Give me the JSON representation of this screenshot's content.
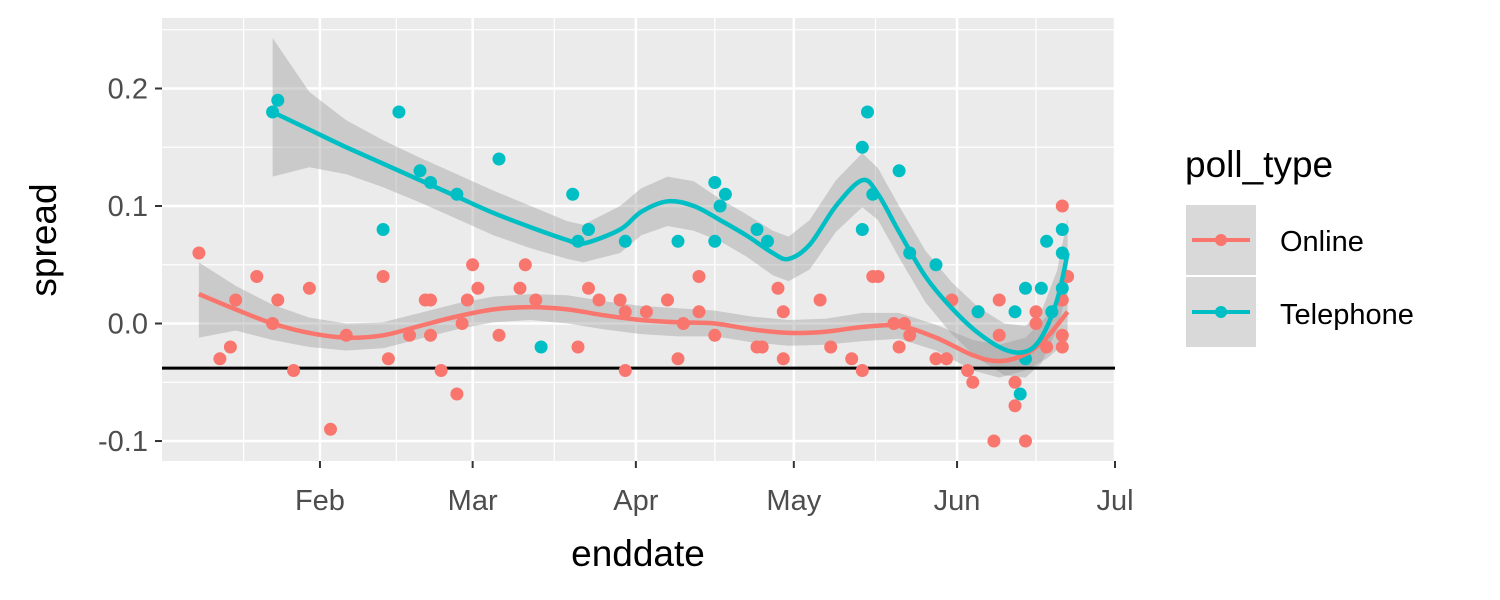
{
  "chart_data": {
    "type": "scatter",
    "xlabel": "enddate",
    "ylabel": "spread",
    "xlim": [
      "2016-01-02",
      "2016-07-01"
    ],
    "ylim": [
      -0.117,
      0.26
    ],
    "x_ticks": [
      {
        "date": "2016-02-01",
        "label": "Feb"
      },
      {
        "date": "2016-03-01",
        "label": "Mar"
      },
      {
        "date": "2016-04-01",
        "label": "Apr"
      },
      {
        "date": "2016-05-01",
        "label": "May"
      },
      {
        "date": "2016-06-01",
        "label": "Jun"
      },
      {
        "date": "2016-07-01",
        "label": "Jul"
      }
    ],
    "y_ticks": [
      {
        "value": -0.1,
        "label": "-0.1"
      },
      {
        "value": 0.0,
        "label": "0.0"
      },
      {
        "value": 0.1,
        "label": "0.1"
      },
      {
        "value": 0.2,
        "label": "0.2"
      }
    ],
    "reference_line": {
      "y": -0.038,
      "color": "#000000"
    },
    "grid": true,
    "legend": {
      "title": "poll_type",
      "position": "right"
    },
    "series": [
      {
        "name": "Online",
        "color": "#F8766D",
        "points": [
          [
            "2016-01-09",
            0.06
          ],
          [
            "2016-01-13",
            -0.03
          ],
          [
            "2016-01-15",
            -0.02
          ],
          [
            "2016-01-16",
            0.02
          ],
          [
            "2016-01-20",
            0.04
          ],
          [
            "2016-01-23",
            0.0
          ],
          [
            "2016-01-24",
            0.02
          ],
          [
            "2016-01-27",
            -0.04
          ],
          [
            "2016-01-30",
            0.03
          ],
          [
            "2016-02-03",
            -0.09
          ],
          [
            "2016-02-06",
            -0.01
          ],
          [
            "2016-02-13",
            0.04
          ],
          [
            "2016-02-14",
            -0.03
          ],
          [
            "2016-02-18",
            -0.01
          ],
          [
            "2016-02-21",
            0.02
          ],
          [
            "2016-02-22",
            -0.01
          ],
          [
            "2016-02-22",
            0.02
          ],
          [
            "2016-02-24",
            -0.04
          ],
          [
            "2016-02-27",
            -0.06
          ],
          [
            "2016-02-28",
            0.0
          ],
          [
            "2016-02-29",
            0.02
          ],
          [
            "2016-03-01",
            0.05
          ],
          [
            "2016-03-02",
            0.03
          ],
          [
            "2016-03-06",
            -0.01
          ],
          [
            "2016-03-10",
            0.03
          ],
          [
            "2016-03-11",
            0.05
          ],
          [
            "2016-03-13",
            0.02
          ],
          [
            "2016-03-21",
            -0.02
          ],
          [
            "2016-03-23",
            0.03
          ],
          [
            "2016-03-25",
            0.02
          ],
          [
            "2016-03-29",
            0.02
          ],
          [
            "2016-03-30",
            0.01
          ],
          [
            "2016-03-30",
            -0.04
          ],
          [
            "2016-04-03",
            0.01
          ],
          [
            "2016-04-07",
            0.02
          ],
          [
            "2016-04-09",
            -0.03
          ],
          [
            "2016-04-10",
            0.0
          ],
          [
            "2016-04-13",
            0.01
          ],
          [
            "2016-04-13",
            0.04
          ],
          [
            "2016-04-16",
            -0.01
          ],
          [
            "2016-04-24",
            -0.02
          ],
          [
            "2016-04-25",
            -0.02
          ],
          [
            "2016-04-28",
            0.03
          ],
          [
            "2016-04-29",
            0.01
          ],
          [
            "2016-04-29",
            -0.03
          ],
          [
            "2016-05-06",
            0.02
          ],
          [
            "2016-05-08",
            -0.02
          ],
          [
            "2016-05-12",
            -0.03
          ],
          [
            "2016-05-14",
            -0.04
          ],
          [
            "2016-05-16",
            0.04
          ],
          [
            "2016-05-17",
            0.04
          ],
          [
            "2016-05-20",
            0.0
          ],
          [
            "2016-05-21",
            -0.02
          ],
          [
            "2016-05-22",
            0.0
          ],
          [
            "2016-05-23",
            -0.01
          ],
          [
            "2016-05-28",
            -0.03
          ],
          [
            "2016-05-30",
            -0.03
          ],
          [
            "2016-05-31",
            0.02
          ],
          [
            "2016-06-03",
            -0.04
          ],
          [
            "2016-06-04",
            -0.05
          ],
          [
            "2016-06-05",
            0.01
          ],
          [
            "2016-06-08",
            -0.1
          ],
          [
            "2016-06-09",
            0.02
          ],
          [
            "2016-06-09",
            -0.01
          ],
          [
            "2016-06-12",
            -0.05
          ],
          [
            "2016-06-12",
            -0.07
          ],
          [
            "2016-06-14",
            -0.1
          ],
          [
            "2016-06-16",
            0.01
          ],
          [
            "2016-06-16",
            0.0
          ],
          [
            "2016-06-18",
            -0.02
          ],
          [
            "2016-06-21",
            0.1
          ],
          [
            "2016-06-21",
            0.02
          ],
          [
            "2016-06-21",
            -0.01
          ],
          [
            "2016-06-21",
            -0.02
          ],
          [
            "2016-06-22",
            0.04
          ]
        ],
        "trend": [
          [
            "2016-01-09",
            0.025
          ],
          [
            "2016-01-16",
            0.012
          ],
          [
            "2016-01-23",
            0.0
          ],
          [
            "2016-01-30",
            -0.008
          ],
          [
            "2016-02-06",
            -0.012
          ],
          [
            "2016-02-13",
            -0.01
          ],
          [
            "2016-02-20",
            -0.002
          ],
          [
            "2016-02-27",
            0.006
          ],
          [
            "2016-03-05",
            0.012
          ],
          [
            "2016-03-12",
            0.014
          ],
          [
            "2016-03-19",
            0.012
          ],
          [
            "2016-03-26",
            0.007
          ],
          [
            "2016-04-02",
            0.003
          ],
          [
            "2016-04-09",
            0.001
          ],
          [
            "2016-04-16",
            0.0
          ],
          [
            "2016-04-23",
            -0.005
          ],
          [
            "2016-04-30",
            -0.008
          ],
          [
            "2016-05-07",
            -0.007
          ],
          [
            "2016-05-14",
            -0.003
          ],
          [
            "2016-05-21",
            -0.002
          ],
          [
            "2016-05-28",
            -0.012
          ],
          [
            "2016-06-04",
            -0.027
          ],
          [
            "2016-06-09",
            -0.032
          ],
          [
            "2016-06-14",
            -0.026
          ],
          [
            "2016-06-18",
            -0.012
          ],
          [
            "2016-06-22",
            0.01
          ]
        ],
        "band": [
          [
            "2016-01-09",
            -0.012,
            0.052
          ],
          [
            "2016-01-16",
            -0.006,
            0.032
          ],
          [
            "2016-01-23",
            -0.014,
            0.016
          ],
          [
            "2016-01-30",
            -0.02,
            0.005
          ],
          [
            "2016-02-06",
            -0.023,
            0.0
          ],
          [
            "2016-02-13",
            -0.021,
            0.001
          ],
          [
            "2016-02-20",
            -0.013,
            0.009
          ],
          [
            "2016-02-27",
            -0.005,
            0.017
          ],
          [
            "2016-03-05",
            0.001,
            0.023
          ],
          [
            "2016-03-12",
            0.003,
            0.025
          ],
          [
            "2016-03-19",
            0.0,
            0.024
          ],
          [
            "2016-03-26",
            -0.005,
            0.019
          ],
          [
            "2016-04-02",
            -0.009,
            0.015
          ],
          [
            "2016-04-09",
            -0.011,
            0.013
          ],
          [
            "2016-04-16",
            -0.011,
            0.011
          ],
          [
            "2016-04-23",
            -0.016,
            0.006
          ],
          [
            "2016-04-30",
            -0.019,
            0.003
          ],
          [
            "2016-05-07",
            -0.018,
            0.004
          ],
          [
            "2016-05-14",
            -0.015,
            0.009
          ],
          [
            "2016-05-21",
            -0.013,
            0.009
          ],
          [
            "2016-05-28",
            -0.023,
            -0.001
          ],
          [
            "2016-06-04",
            -0.04,
            -0.014
          ],
          [
            "2016-06-09",
            -0.046,
            -0.018
          ],
          [
            "2016-06-14",
            -0.04,
            -0.012
          ],
          [
            "2016-06-18",
            -0.03,
            0.006
          ],
          [
            "2016-06-22",
            -0.015,
            0.035
          ]
        ]
      },
      {
        "name": "Telephone",
        "color": "#00BFC4",
        "points": [
          [
            "2016-01-23",
            0.18
          ],
          [
            "2016-01-24",
            0.19
          ],
          [
            "2016-02-13",
            0.08
          ],
          [
            "2016-02-16",
            0.18
          ],
          [
            "2016-02-20",
            0.13
          ],
          [
            "2016-02-22",
            0.12
          ],
          [
            "2016-02-27",
            0.11
          ],
          [
            "2016-03-06",
            0.14
          ],
          [
            "2016-03-14",
            -0.02
          ],
          [
            "2016-03-20",
            0.11
          ],
          [
            "2016-03-21",
            0.07
          ],
          [
            "2016-03-23",
            0.08
          ],
          [
            "2016-03-30",
            0.07
          ],
          [
            "2016-04-09",
            0.07
          ],
          [
            "2016-04-16",
            0.12
          ],
          [
            "2016-04-16",
            0.07
          ],
          [
            "2016-04-17",
            0.1
          ],
          [
            "2016-04-18",
            0.11
          ],
          [
            "2016-04-24",
            0.08
          ],
          [
            "2016-04-26",
            0.07
          ],
          [
            "2016-05-14",
            0.15
          ],
          [
            "2016-05-14",
            0.08
          ],
          [
            "2016-05-15",
            0.18
          ],
          [
            "2016-05-16",
            0.11
          ],
          [
            "2016-05-21",
            0.13
          ],
          [
            "2016-05-23",
            0.06
          ],
          [
            "2016-05-28",
            0.05
          ],
          [
            "2016-06-05",
            0.01
          ],
          [
            "2016-06-12",
            0.01
          ],
          [
            "2016-06-13",
            -0.06
          ],
          [
            "2016-06-14",
            -0.03
          ],
          [
            "2016-06-14",
            0.03
          ],
          [
            "2016-06-17",
            0.03
          ],
          [
            "2016-06-18",
            0.07
          ],
          [
            "2016-06-19",
            0.01
          ],
          [
            "2016-06-21",
            0.08
          ],
          [
            "2016-06-21",
            0.06
          ],
          [
            "2016-06-21",
            0.03
          ]
        ],
        "trend": [
          [
            "2016-01-23",
            0.18
          ],
          [
            "2016-01-30",
            0.165
          ],
          [
            "2016-02-06",
            0.15
          ],
          [
            "2016-02-13",
            0.136
          ],
          [
            "2016-02-20",
            0.122
          ],
          [
            "2016-02-27",
            0.108
          ],
          [
            "2016-03-05",
            0.094
          ],
          [
            "2016-03-12",
            0.082
          ],
          [
            "2016-03-19",
            0.071
          ],
          [
            "2016-03-22",
            0.068
          ],
          [
            "2016-03-29",
            0.08
          ],
          [
            "2016-04-02",
            0.095
          ],
          [
            "2016-04-07",
            0.104
          ],
          [
            "2016-04-12",
            0.1
          ],
          [
            "2016-04-17",
            0.088
          ],
          [
            "2016-04-22",
            0.075
          ],
          [
            "2016-04-27",
            0.06
          ],
          [
            "2016-04-30",
            0.055
          ],
          [
            "2016-05-04",
            0.067
          ],
          [
            "2016-05-09",
            0.1
          ],
          [
            "2016-05-14",
            0.122
          ],
          [
            "2016-05-17",
            0.11
          ],
          [
            "2016-05-21",
            0.078
          ],
          [
            "2016-05-26",
            0.04
          ],
          [
            "2016-05-31",
            0.013
          ],
          [
            "2016-06-05",
            -0.008
          ],
          [
            "2016-06-10",
            -0.022
          ],
          [
            "2016-06-14",
            -0.024
          ],
          [
            "2016-06-17",
            -0.012
          ],
          [
            "2016-06-20",
            0.02
          ],
          [
            "2016-06-22",
            0.06
          ]
        ],
        "band": [
          [
            "2016-01-23",
            0.125,
            0.243
          ],
          [
            "2016-01-30",
            0.133,
            0.197
          ],
          [
            "2016-02-06",
            0.127,
            0.173
          ],
          [
            "2016-02-13",
            0.116,
            0.156
          ],
          [
            "2016-02-20",
            0.103,
            0.141
          ],
          [
            "2016-02-27",
            0.089,
            0.127
          ],
          [
            "2016-03-05",
            0.075,
            0.113
          ],
          [
            "2016-03-12",
            0.064,
            0.1
          ],
          [
            "2016-03-19",
            0.055,
            0.087
          ],
          [
            "2016-03-22",
            0.052,
            0.084
          ],
          [
            "2016-03-29",
            0.06,
            0.1
          ],
          [
            "2016-04-02",
            0.075,
            0.115
          ],
          [
            "2016-04-07",
            0.083,
            0.125
          ],
          [
            "2016-04-12",
            0.079,
            0.121
          ],
          [
            "2016-04-17",
            0.07,
            0.106
          ],
          [
            "2016-04-22",
            0.057,
            0.093
          ],
          [
            "2016-04-27",
            0.041,
            0.079
          ],
          [
            "2016-04-30",
            0.036,
            0.074
          ],
          [
            "2016-05-04",
            0.046,
            0.088
          ],
          [
            "2016-05-09",
            0.078,
            0.122
          ],
          [
            "2016-05-14",
            0.099,
            0.145
          ],
          [
            "2016-05-17",
            0.088,
            0.132
          ],
          [
            "2016-05-21",
            0.056,
            0.1
          ],
          [
            "2016-05-26",
            0.018,
            0.062
          ],
          [
            "2016-05-31",
            -0.009,
            0.035
          ],
          [
            "2016-06-05",
            -0.03,
            0.014
          ],
          [
            "2016-06-10",
            -0.044,
            0.0
          ],
          [
            "2016-06-14",
            -0.046,
            -0.002
          ],
          [
            "2016-06-17",
            -0.034,
            0.01
          ],
          [
            "2016-06-20",
            -0.005,
            0.045
          ],
          [
            "2016-06-22",
            0.03,
            0.09
          ]
        ]
      }
    ]
  }
}
